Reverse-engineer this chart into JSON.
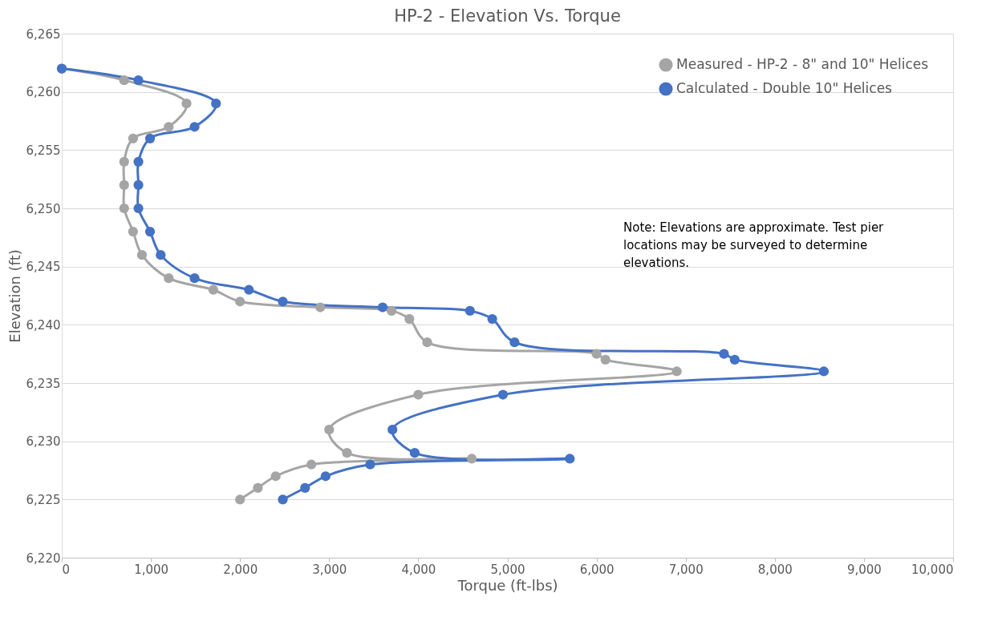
{
  "chart_data": {
    "type": "line",
    "title": "HP-2 - Elevation Vs. Torque",
    "xlabel": "Torque (ft-lbs)",
    "ylabel": "Elevation (ft)",
    "xlim": [
      0,
      10000
    ],
    "xticks": [
      {
        "value": 0,
        "label": "0"
      },
      {
        "value": 1000,
        "label": "1,000"
      },
      {
        "value": 2000,
        "label": "2,000"
      },
      {
        "value": 3000,
        "label": "3,000"
      },
      {
        "value": 4000,
        "label": "4,000"
      },
      {
        "value": 5000,
        "label": "5,000"
      },
      {
        "value": 6000,
        "label": "6,000"
      },
      {
        "value": 7000,
        "label": "7,000"
      },
      {
        "value": 8000,
        "label": "8,000"
      },
      {
        "value": 9000,
        "label": "9,000"
      },
      {
        "value": 10000,
        "label": "10,000"
      }
    ],
    "ylim": [
      6220,
      6265
    ],
    "yticks": [
      {
        "value": 6220,
        "label": "6,220"
      },
      {
        "value": 6225,
        "label": "6,225"
      },
      {
        "value": 6230,
        "label": "6,230"
      },
      {
        "value": 6235,
        "label": "6,235"
      },
      {
        "value": 6240,
        "label": "6,240"
      },
      {
        "value": 6245,
        "label": "6,245"
      },
      {
        "value": 6250,
        "label": "6,250"
      },
      {
        "value": 6255,
        "label": "6,255"
      },
      {
        "value": 6260,
        "label": "6,260"
      },
      {
        "value": 6265,
        "label": "6,265"
      }
    ],
    "grid": "y",
    "legend": "top right",
    "marker": "circle",
    "line_style": "solid",
    "annotations": [
      "Note: Elevations are approximate. Test pier locations may be surveyed to determine elevations."
    ],
    "series": [
      {
        "name": "Measured - HP-2 - 8\" and 10\" Helices",
        "color": "#a5a5a5",
        "x": [
          0,
          700,
          1400,
          1200,
          800,
          700,
          700,
          700,
          800,
          900,
          1200,
          1700,
          2000,
          2900,
          3700,
          3900,
          4100,
          6000,
          6100,
          6900,
          4000,
          3000,
          3200,
          4600,
          2800,
          2400,
          2200,
          2000
        ],
        "values": [
          6262,
          6261,
          6259,
          6257,
          6256,
          6254,
          6252,
          6250,
          6248,
          6246,
          6244,
          6243,
          6242,
          6241.5,
          6241.2,
          6240.5,
          6238.5,
          6237.5,
          6237,
          6236,
          6234,
          6231,
          6229,
          6228.5,
          6228,
          6227,
          6226,
          6225
        ]
      },
      {
        "name": "Calculated - Double 10\" Helices",
        "color": "#4472c4",
        "x": [
          0,
          860,
          1730,
          1490,
          990,
          860,
          860,
          860,
          990,
          1110,
          1490,
          2100,
          2480,
          3600,
          4580,
          4830,
          5080,
          7430,
          7550,
          8550,
          4950,
          3710,
          3960,
          5700,
          3460,
          2960,
          2730,
          2480
        ],
        "values": [
          6262,
          6261,
          6259,
          6257,
          6256,
          6254,
          6252,
          6250,
          6248,
          6246,
          6244,
          6243,
          6242,
          6241.5,
          6241.2,
          6240.5,
          6238.5,
          6237.5,
          6237,
          6236,
          6234,
          6231,
          6229,
          6228.5,
          6228,
          6227,
          6226,
          6225
        ]
      }
    ]
  }
}
